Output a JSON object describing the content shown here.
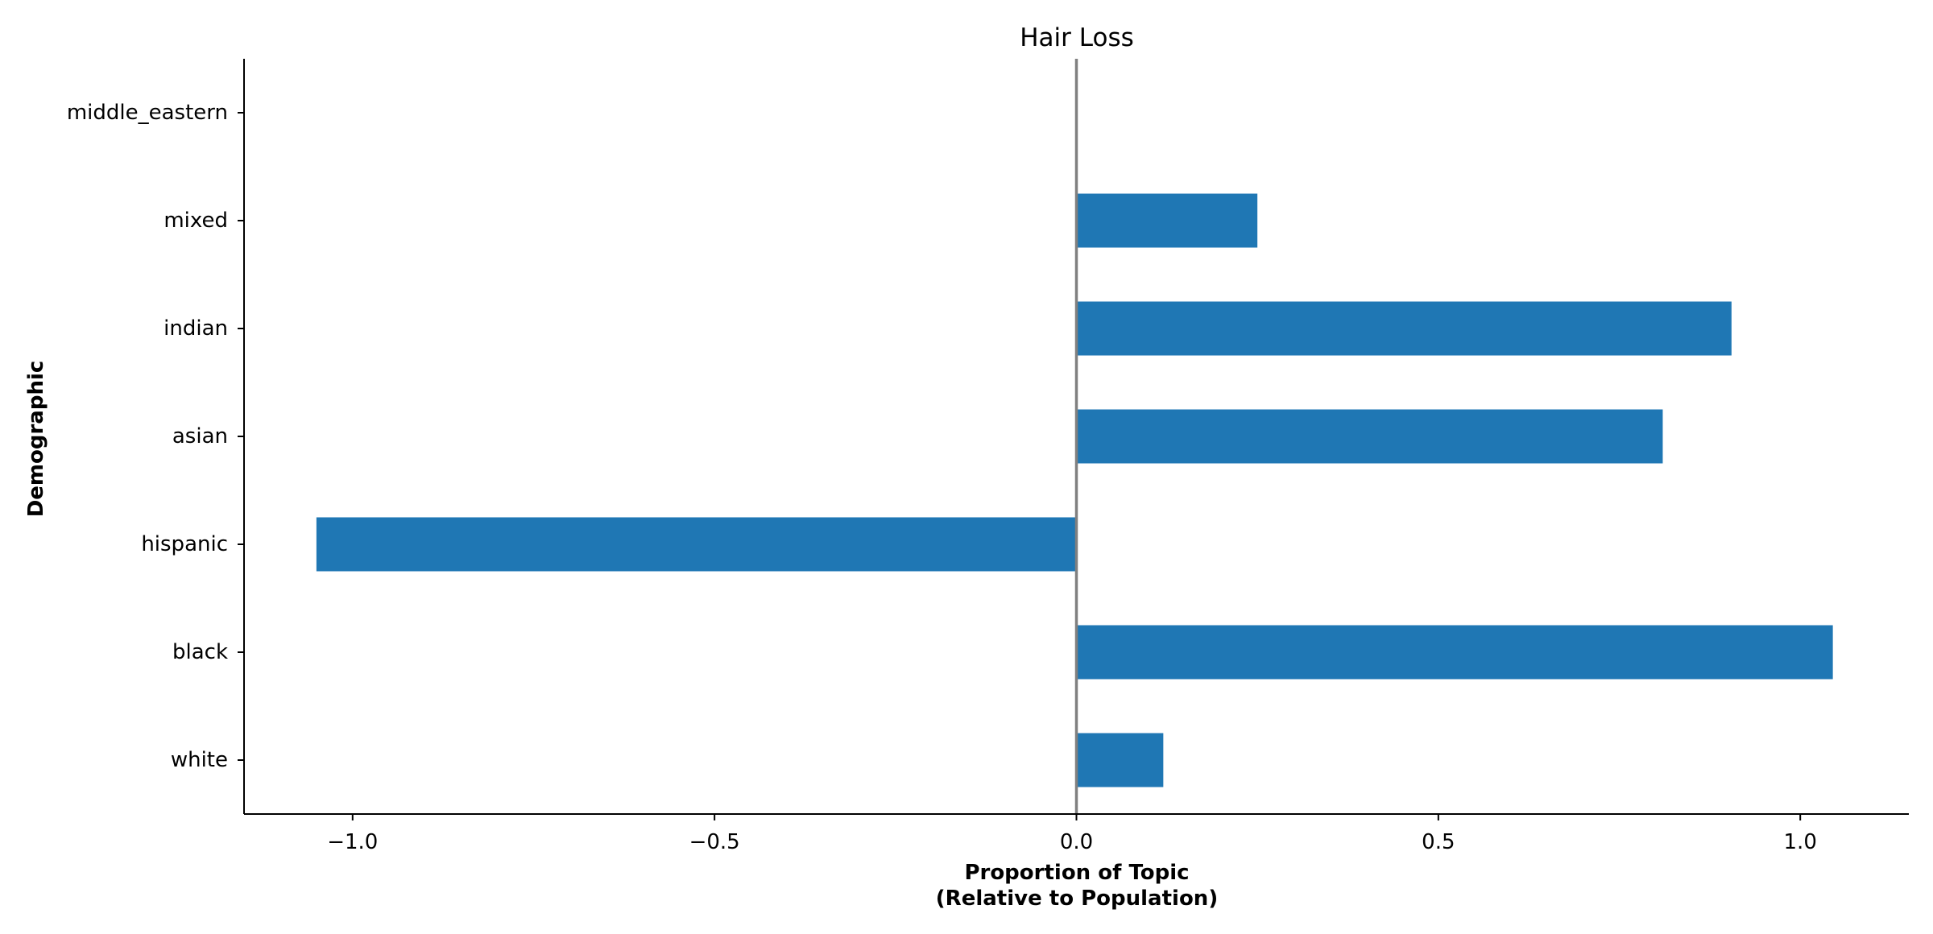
{
  "chart_data": {
    "type": "bar",
    "orientation": "horizontal",
    "title": "Hair Loss",
    "xlabel_lines": [
      "Proportion of Topic",
      "(Relative to Population)"
    ],
    "ylabel": "Demographic",
    "categories": [
      "white",
      "black",
      "hispanic",
      "asian",
      "indian",
      "mixed",
      "middle_eastern"
    ],
    "values": [
      0.12,
      1.045,
      -1.05,
      0.81,
      0.905,
      0.25,
      0.0
    ],
    "xlim": [
      -1.15,
      1.15
    ],
    "xticks": [
      -1.0,
      -0.5,
      0.0,
      0.5,
      1.0
    ],
    "xtick_labels": [
      "−1.0",
      "−0.5",
      "0.0",
      "0.5",
      "1.0"
    ],
    "zero_line": true,
    "grid": false,
    "bar_color": "#1f77b4",
    "zero_line_color": "#808080"
  }
}
